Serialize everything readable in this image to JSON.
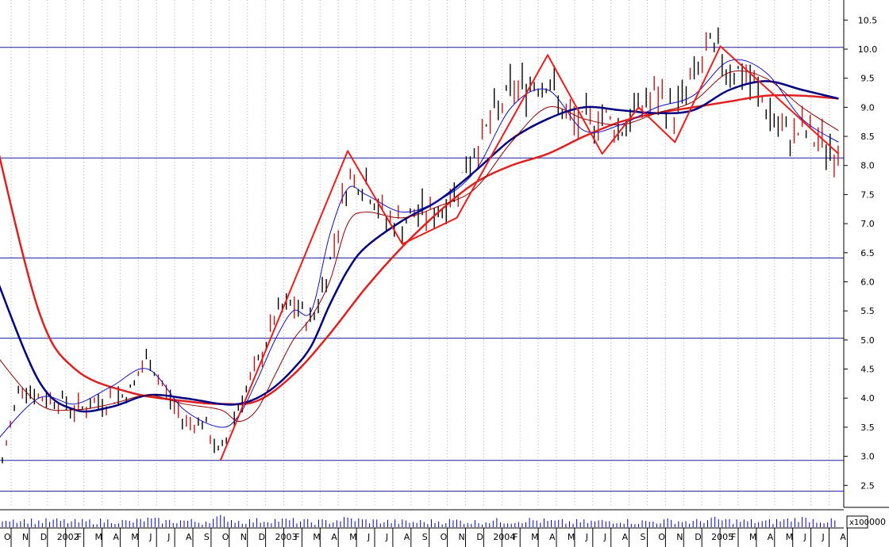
{
  "chart_data": {
    "type": "line",
    "title": "",
    "xlabel": "",
    "ylabel": "",
    "scale": "linear",
    "ylim": [
      2.2,
      10.8
    ],
    "grid": "vertical dotted",
    "y_ticks": [
      "2.5",
      "3.0",
      "3.5",
      "4.0",
      "4.5",
      "5.0",
      "5.5",
      "6.0",
      "6.5",
      "7.0",
      "7.5",
      "8.0",
      "8.5",
      "9.0",
      "9.5",
      "10.0",
      "10.5"
    ],
    "x_tick_labels": [
      "O",
      "N",
      "D",
      "2002",
      "F",
      "M",
      "A",
      "M",
      "J",
      "J",
      "A",
      "S",
      "O",
      "N",
      "D",
      "2003",
      "F",
      "M",
      "A",
      "M",
      "J",
      "J",
      "A",
      "S",
      "O",
      "N",
      "D",
      "2004",
      "F",
      "M",
      "A",
      "M",
      "J",
      "J",
      "A",
      "S",
      "O",
      "N",
      "D",
      "2005",
      "F",
      "M",
      "A",
      "M",
      "J",
      "J",
      "A"
    ],
    "volume_multiplier_label": "x100",
    "volume_label": "000",
    "horizontal_levels": [
      2.93,
      5.03,
      6.41,
      8.13,
      10.03,
      2.4
    ],
    "price": {
      "x": [
        0,
        1,
        2,
        3,
        4,
        5,
        6,
        7,
        8,
        9,
        10,
        11,
        12,
        13,
        14,
        15,
        16,
        17,
        18,
        19,
        20,
        21,
        22,
        23,
        24,
        25,
        26,
        27,
        28,
        29,
        30,
        31,
        32,
        33,
        34,
        35,
        36,
        37,
        38,
        39,
        40,
        41,
        42,
        43,
        44,
        45,
        46
      ],
      "values": [
        2.9,
        4.3,
        4.0,
        4.0,
        3.8,
        3.9,
        4.0,
        4.1,
        4.7,
        4.1,
        3.6,
        3.6,
        3.0,
        3.9,
        4.5,
        5.4,
        5.6,
        5.3,
        6.3,
        7.8,
        7.7,
        7.1,
        7.0,
        7.2,
        7.2,
        7.6,
        8.3,
        8.8,
        9.3,
        9.4,
        9.5,
        8.8,
        8.7,
        8.9,
        8.6,
        9.0,
        9.2,
        8.9,
        9.5,
        10.0,
        9.7,
        9.5,
        9.0,
        8.5,
        8.6,
        8.4,
        8.2
      ]
    },
    "series": [
      {
        "name": "",
        "color": "#e02020",
        "width": 2.5,
        "x": [
          -0.5,
          2,
          4,
          7,
          10,
          12,
          14,
          16,
          18,
          20,
          22,
          24,
          26,
          28,
          30,
          32,
          34,
          36,
          38,
          40,
          42,
          44,
          46
        ],
        "values": [
          8.6,
          5.5,
          4.5,
          4.1,
          3.95,
          3.9,
          3.95,
          4.4,
          5.1,
          5.9,
          6.6,
          7.2,
          7.7,
          8.0,
          8.2,
          8.5,
          8.75,
          8.9,
          9.0,
          9.1,
          9.2,
          9.2,
          9.15
        ]
      },
      {
        "name": "",
        "color": "#000080",
        "width": 2.5,
        "x": [
          -0.5,
          2,
          4,
          6,
          8,
          10,
          12,
          13,
          14,
          15,
          16,
          17,
          18,
          19,
          20,
          22,
          24,
          26,
          28,
          30,
          32,
          34,
          36,
          38,
          40,
          42,
          44,
          46
        ],
        "values": [
          6.2,
          4.3,
          3.8,
          3.85,
          4.05,
          4.0,
          3.9,
          3.9,
          4.0,
          4.2,
          4.5,
          4.9,
          5.6,
          6.2,
          6.6,
          7.05,
          7.4,
          7.9,
          8.45,
          8.8,
          9.0,
          8.95,
          8.9,
          8.95,
          9.3,
          9.45,
          9.3,
          9.15
        ]
      },
      {
        "name": "",
        "color": "#8b0000",
        "width": 1,
        "x": [
          -0.5,
          2,
          4,
          6,
          8,
          10,
          12,
          13,
          14,
          15,
          16,
          17,
          18,
          19,
          20,
          22,
          24,
          26,
          28,
          30,
          32,
          34,
          36,
          38,
          40,
          42,
          44,
          46
        ],
        "values": [
          4.8,
          3.9,
          3.8,
          3.9,
          4.05,
          3.9,
          3.8,
          3.6,
          3.8,
          4.4,
          5.0,
          5.4,
          6.0,
          7.0,
          7.2,
          7.1,
          7.3,
          7.6,
          8.4,
          9.0,
          8.8,
          8.7,
          8.9,
          9.1,
          9.6,
          9.5,
          9.0,
          8.6
        ]
      },
      {
        "name": "",
        "color": "#1010c0",
        "width": 1,
        "x": [
          -0.5,
          2,
          4,
          6,
          8,
          10,
          12,
          13,
          14,
          15,
          16,
          17,
          18,
          19,
          20,
          22,
          24,
          26,
          28,
          30,
          32,
          34,
          36,
          38,
          40,
          42,
          44,
          46
        ],
        "values": [
          3.2,
          4.0,
          3.9,
          4.2,
          4.5,
          3.8,
          3.5,
          3.7,
          4.3,
          5.0,
          5.5,
          5.5,
          6.8,
          7.6,
          7.5,
          7.2,
          7.4,
          7.9,
          9.0,
          9.3,
          8.6,
          8.7,
          9.0,
          9.2,
          9.8,
          9.6,
          8.8,
          8.4
        ]
      },
      {
        "name": "",
        "color": "#ee1c1c",
        "width": 2,
        "x": [
          12,
          19,
          22,
          25,
          30,
          33,
          35,
          37,
          39.5,
          42.5,
          46
        ],
        "values": [
          2.93,
          8.25,
          6.65,
          7.1,
          9.9,
          8.2,
          9.0,
          8.4,
          10.05,
          9.2,
          8.2
        ]
      }
    ],
    "volume": {
      "x": [
        0,
        1,
        2,
        3,
        4,
        5,
        6,
        7,
        8,
        9,
        10,
        11,
        12,
        13,
        14,
        15,
        16,
        17,
        18,
        19,
        20,
        21,
        22,
        23,
        24,
        25,
        26,
        27,
        28,
        29,
        30,
        31,
        32,
        33,
        34,
        35,
        36,
        37,
        38,
        39,
        40,
        41,
        42,
        43,
        44,
        45,
        46
      ],
      "values": [
        0.8,
        0.6,
        0.4,
        0.5,
        0.3,
        0.4,
        0.5,
        0.3,
        0.7,
        0.4,
        0.5,
        0.3,
        1.0,
        0.4,
        0.5,
        0.6,
        0.5,
        0.3,
        0.4,
        0.8,
        0.5,
        0.4,
        0.3,
        0.3,
        0.4,
        0.5,
        0.3,
        0.5,
        0.4,
        0.6,
        0.4,
        0.3,
        0.3,
        0.4,
        0.5,
        0.3,
        0.4,
        0.5,
        0.3,
        0.7,
        0.5,
        0.4,
        0.3,
        0.6,
        0.8,
        0.5,
        0.4
      ]
    }
  }
}
